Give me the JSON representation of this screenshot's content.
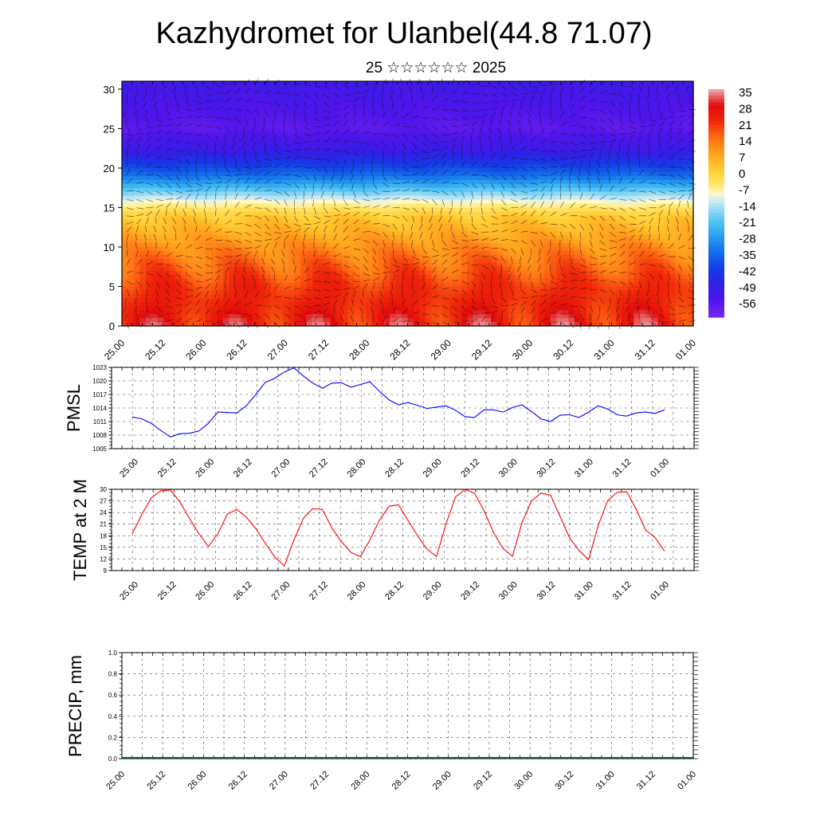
{
  "title": "Kazhydromet for Ulanbel(44.8 71.07)",
  "subtitle": "25 ☆☆☆☆☆☆ 2025",
  "colorbar_labels": [
    "35",
    "28",
    "21",
    "14",
    "7",
    "0",
    "-7",
    "-14",
    "-21",
    "-28",
    "-35",
    "-42",
    "-49",
    "-56"
  ],
  "time_ticks": [
    "25.00",
    "25.12",
    "26.00",
    "26.12",
    "27.00",
    "27.12",
    "28.00",
    "28.12",
    "29.00",
    "29.12",
    "30.00",
    "30.12",
    "31.00",
    "31.12",
    "01.00"
  ],
  "chart_data": [
    {
      "type": "heatmap",
      "description_key": "temperature_cross_section",
      "y_ticks": [
        "0",
        "5",
        "10",
        "15",
        "20",
        "25",
        "30"
      ],
      "ylim": [
        0,
        31
      ],
      "colorbar": {
        "min": -63,
        "max": 35,
        "ticks": [
          35,
          28,
          21,
          14,
          7,
          0,
          -7,
          -14,
          -21,
          -28,
          -35,
          -42,
          -49,
          -56
        ]
      },
      "profile_by_height": [
        {
          "h": 0,
          "t": 25
        },
        {
          "h": 5,
          "t": 20
        },
        {
          "h": 10,
          "t": 10
        },
        {
          "h": 14,
          "t": 0
        },
        {
          "h": 16,
          "t": -12
        },
        {
          "h": 19,
          "t": -35
        },
        {
          "h": 22,
          "t": -50
        },
        {
          "h": 25,
          "t": -58
        },
        {
          "h": 28,
          "t": -55
        },
        {
          "h": 31,
          "t": -52
        }
      ]
    },
    {
      "type": "line",
      "ylabel": "PMSL",
      "ylim": [
        1005,
        1023
      ],
      "y_ticks": [
        "1005",
        "1008",
        "1011",
        "1014",
        "1017",
        "1020",
        "1023"
      ],
      "color": "#0000ff",
      "values": [
        1012.0,
        1011.6,
        1010.6,
        1009.0,
        1007.6,
        1008.3,
        1008.4,
        1008.9,
        1010.6,
        1013.1,
        1013.0,
        1012.9,
        1014.5,
        1017.0,
        1019.7,
        1020.6,
        1022.0,
        1022.9,
        1021.1,
        1019.5,
        1018.4,
        1019.5,
        1019.6,
        1018.6,
        1019.2,
        1019.8,
        1017.7,
        1015.8,
        1014.7,
        1015.2,
        1014.6,
        1013.9,
        1014.2,
        1014.5,
        1013.5,
        1012.1,
        1011.9,
        1013.6,
        1013.6,
        1013.1,
        1014.1,
        1014.7,
        1013.2,
        1011.6,
        1011.0,
        1012.4,
        1012.5,
        1011.9,
        1013.1,
        1014.5,
        1013.8,
        1012.5,
        1012.2,
        1012.9,
        1013.1,
        1012.8,
        1013.6
      ]
    },
    {
      "type": "line",
      "ylabel": "TEMP at 2 M",
      "ylim": [
        9,
        30
      ],
      "y_ticks": [
        "9",
        "12",
        "15",
        "18",
        "21",
        "24",
        "27",
        "30"
      ],
      "color": "#ff0000",
      "values": [
        18.5,
        23.5,
        27.8,
        29.6,
        29.8,
        26.8,
        22.5,
        18.6,
        15.2,
        18.5,
        23.6,
        24.8,
        22.8,
        19.8,
        16.0,
        12.5,
        10.2,
        16.9,
        22.5,
        25.0,
        24.8,
        20.0,
        16.5,
        13.7,
        12.6,
        16.9,
        22.0,
        25.6,
        26.0,
        22.0,
        18.0,
        14.6,
        12.6,
        21.0,
        28.0,
        30.0,
        29.0,
        24.5,
        18.8,
        14.7,
        12.7,
        21.4,
        27.0,
        29.0,
        28.5,
        23.0,
        17.5,
        14.2,
        11.8,
        20.5,
        27.0,
        29.2,
        29.4,
        25.0,
        19.5,
        17.5,
        14.0
      ]
    },
    {
      "type": "line",
      "ylabel": "PRECIP, mm",
      "ylim": [
        0,
        1
      ],
      "y_ticks": [
        "0.0",
        "0.2",
        "0.4",
        "0.6",
        "0.8",
        "1.0"
      ],
      "color": "#0000ff",
      "values": [
        0,
        0,
        0,
        0,
        0,
        0,
        0,
        0,
        0,
        0,
        0,
        0,
        0,
        0,
        0,
        0,
        0,
        0,
        0,
        0,
        0,
        0,
        0,
        0,
        0,
        0,
        0,
        0,
        0,
        0,
        0,
        0,
        0,
        0,
        0,
        0,
        0,
        0,
        0,
        0,
        0,
        0,
        0,
        0,
        0,
        0,
        0,
        0,
        0,
        0,
        0,
        0,
        0,
        0,
        0,
        0,
        0
      ]
    }
  ]
}
